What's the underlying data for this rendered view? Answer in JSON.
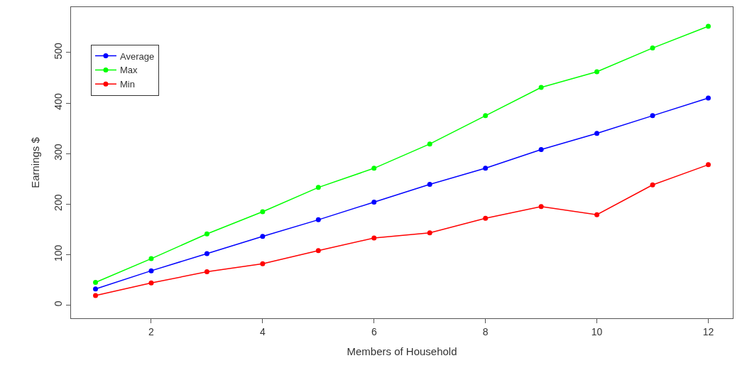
{
  "chart_data": {
    "type": "line",
    "xlabel": "Members of Household",
    "ylabel": "Earnings $",
    "x": [
      1,
      2,
      3,
      4,
      5,
      6,
      7,
      8,
      9,
      10,
      11,
      12
    ],
    "series": [
      {
        "name": "Average",
        "color": "#0000ff",
        "values": [
          32,
          68,
          102,
          136,
          169,
          204,
          239,
          271,
          308,
          340,
          375,
          410
        ]
      },
      {
        "name": "Max",
        "color": "#00ff00",
        "values": [
          45,
          92,
          141,
          185,
          233,
          271,
          319,
          375,
          431,
          462,
          509,
          552
        ]
      },
      {
        "name": "Min",
        "color": "#ff0000",
        "values": [
          19,
          44,
          66,
          82,
          108,
          133,
          143,
          172,
          195,
          179,
          238,
          278
        ]
      }
    ],
    "xlim": [
      0.56,
      12.44
    ],
    "ylim": [
      -26,
      590
    ],
    "xticks": [
      2,
      4,
      6,
      8,
      10,
      12
    ],
    "yticks": [
      0,
      100,
      200,
      300,
      400,
      500
    ],
    "legend": "top left",
    "marker": "circle",
    "line_style": "solid"
  }
}
